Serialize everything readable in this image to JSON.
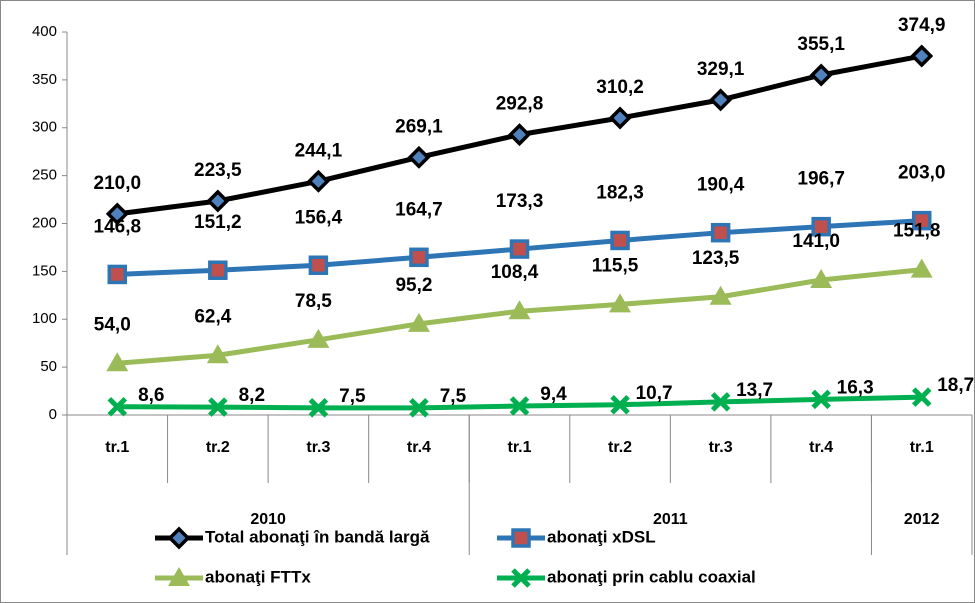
{
  "chart_data": {
    "type": "line",
    "categories": [
      "tr.1",
      "tr.2",
      "tr.3",
      "tr.4",
      "tr.1",
      "tr.2",
      "tr.3",
      "tr.4",
      "tr.1"
    ],
    "groups": [
      {
        "label": "2010",
        "span": 4
      },
      {
        "label": "2011",
        "span": 4
      },
      {
        "label": "2012",
        "span": 1
      }
    ],
    "series": [
      {
        "name": "Total abonaţi în bandă largă",
        "color": "#000000",
        "marker": "diamond",
        "marker_fill": "#4f81bd",
        "values": [
          210.0,
          223.5,
          244.1,
          269.1,
          292.8,
          310.2,
          329.1,
          355.1,
          374.9
        ],
        "value_labels": [
          "210,0",
          "223,5",
          "244,1",
          "269,1",
          "292,8",
          "310,2",
          "329,1",
          "355,1",
          "374,9"
        ]
      },
      {
        "name": "abonaţi xDSL",
        "color": "#2e75b6",
        "marker": "square",
        "marker_fill": "#c0504d",
        "values": [
          146.8,
          151.2,
          156.4,
          164.7,
          173.3,
          182.3,
          190.4,
          196.7,
          203.0
        ],
        "value_labels": [
          "146,8",
          "151,2",
          "156,4",
          "164,7",
          "173,3",
          "182,3",
          "190,4",
          "196,7",
          "203,0"
        ]
      },
      {
        "name": "abonaţi FTTx",
        "color": "#9bbb59",
        "marker": "triangle",
        "marker_fill": "#9bbb59",
        "values": [
          54.0,
          62.4,
          78.5,
          95.2,
          108.4,
          115.5,
          123.5,
          141.0,
          151.8
        ],
        "value_labels": [
          "54,0",
          "62,4",
          "78,5",
          "95,2",
          "108,4",
          "115,5",
          "123,5",
          "141,0",
          "151,8"
        ]
      },
      {
        "name": "abonaţi prin cablu coaxial",
        "color": "#00b050",
        "marker": "x",
        "marker_fill": "#00b050",
        "values": [
          8.6,
          8.2,
          7.5,
          7.5,
          9.4,
          10.7,
          13.7,
          16.3,
          18.7
        ],
        "value_labels": [
          "8,6",
          "8,2",
          "7,5",
          "7,5",
          "9,4",
          "10,7",
          "13,7",
          "16,3",
          "18,7"
        ]
      }
    ],
    "ylim": [
      0,
      400
    ],
    "yticks": [
      0,
      50,
      100,
      150,
      200,
      250,
      300,
      350,
      400
    ],
    "grid": false,
    "legend": "bottom"
  }
}
